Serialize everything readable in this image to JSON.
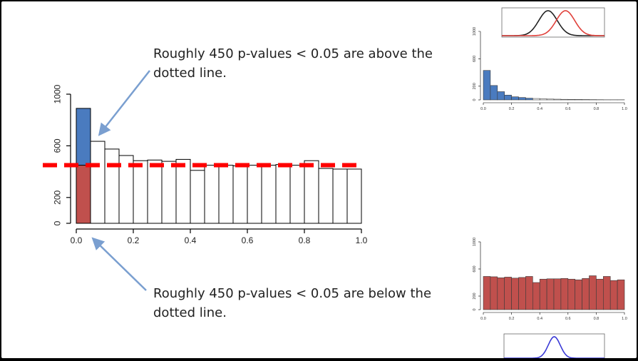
{
  "annotations": {
    "above": "Roughly 450 p-values < 0.05 are above the dotted line.",
    "below": "Roughly 450 p-values < 0.05 are below the dotted line."
  },
  "colors": {
    "blue_bar": "#4a7bbf",
    "red_bar": "#c0504d",
    "dashed_line": "#ff0000",
    "arrow": "#7a9fd0",
    "curve_black": "#222222",
    "curve_red": "#e0403a",
    "curve_blue": "#3a3ad6"
  },
  "chart_data": [
    {
      "id": "main-histogram",
      "type": "bar",
      "title": "",
      "xlabel": "",
      "ylabel": "",
      "xlim": [
        0,
        1
      ],
      "ylim": [
        0,
        1000
      ],
      "xticks": [
        "0.0",
        "0.2",
        "0.4",
        "0.6",
        "0.8",
        "1.0"
      ],
      "yticks": [
        "0",
        "200",
        "600",
        "1000"
      ],
      "bin_width": 0.05,
      "bins": [
        0.0,
        0.05,
        0.1,
        0.15,
        0.2,
        0.25,
        0.3,
        0.35,
        0.4,
        0.45,
        0.5,
        0.55,
        0.6,
        0.65,
        0.7,
        0.75,
        0.8,
        0.85,
        0.9,
        0.95
      ],
      "values": [
        890,
        635,
        575,
        525,
        485,
        490,
        480,
        495,
        410,
        450,
        450,
        445,
        450,
        450,
        455,
        450,
        485,
        425,
        420,
        420
      ],
      "split_first_bin": {
        "below": 450,
        "above": 440
      },
      "reference_line": 450,
      "grid": false
    },
    {
      "id": "top-right-histogram",
      "type": "bar",
      "xlim": [
        0,
        1
      ],
      "ylim": [
        0,
        1000
      ],
      "xticks": [
        "0.0",
        "0.2",
        "0.4",
        "0.6",
        "0.8",
        "1.0"
      ],
      "yticks": [
        "0",
        "200",
        "600",
        "1000"
      ],
      "bin_width": 0.05,
      "values": [
        430,
        210,
        120,
        70,
        45,
        35,
        25,
        20,
        15,
        12,
        10,
        8,
        7,
        6,
        5,
        4,
        3,
        2,
        2,
        2
      ],
      "grid": false
    },
    {
      "id": "bottom-right-histogram",
      "type": "bar",
      "xlim": [
        0,
        1
      ],
      "ylim": [
        0,
        1000
      ],
      "xticks": [
        "0.0",
        "0.2",
        "0.4",
        "0.6",
        "0.8",
        "1.0"
      ],
      "yticks": [
        "0",
        "200",
        "600",
        "1000"
      ],
      "bin_width": 0.05,
      "values": [
        490,
        485,
        470,
        480,
        465,
        475,
        490,
        400,
        450,
        455,
        455,
        460,
        450,
        440,
        460,
        500,
        450,
        490,
        430,
        440
      ],
      "grid": false
    },
    {
      "id": "top-curves",
      "type": "line",
      "series": [
        {
          "mean": 0.45,
          "sd": 0.09
        },
        {
          "mean": 0.62,
          "sd": 0.09
        }
      ]
    },
    {
      "id": "bottom-curve",
      "type": "line",
      "series": [
        {
          "mean": 0.5,
          "sd": 0.06
        }
      ]
    }
  ]
}
